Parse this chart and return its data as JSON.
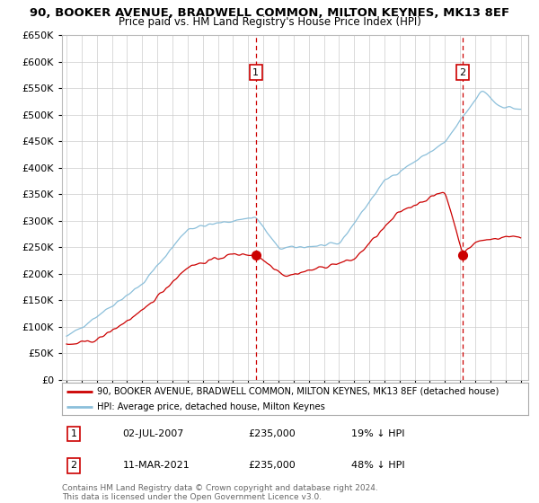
{
  "title": "90, BOOKER AVENUE, BRADWELL COMMON, MILTON KEYNES, MK13 8EF",
  "subtitle": "Price paid vs. HM Land Registry's House Price Index (HPI)",
  "ylim": [
    0,
    650000
  ],
  "yticks": [
    0,
    50000,
    100000,
    150000,
    200000,
    250000,
    300000,
    350000,
    400000,
    450000,
    500000,
    550000,
    600000,
    650000
  ],
  "sale1_date": "02-JUL-2007",
  "sale1_price": 235000,
  "sale1_pct": "19% ↓ HPI",
  "sale2_date": "11-MAR-2021",
  "sale2_price": 235000,
  "sale2_pct": "48% ↓ HPI",
  "hpi_color": "#8bbfda",
  "price_color": "#cc0000",
  "vline_color": "#cc0000",
  "background_color": "#ffffff",
  "grid_color": "#cccccc",
  "legend_line1": "90, BOOKER AVENUE, BRADWELL COMMON, MILTON KEYNES, MK13 8EF (detached house)",
  "legend_line2": "HPI: Average price, detached house, Milton Keynes",
  "footer": "Contains HM Land Registry data © Crown copyright and database right 2024.\nThis data is licensed under the Open Government Licence v3.0.",
  "sale1_x": 2007.5,
  "sale2_x": 2021.17
}
